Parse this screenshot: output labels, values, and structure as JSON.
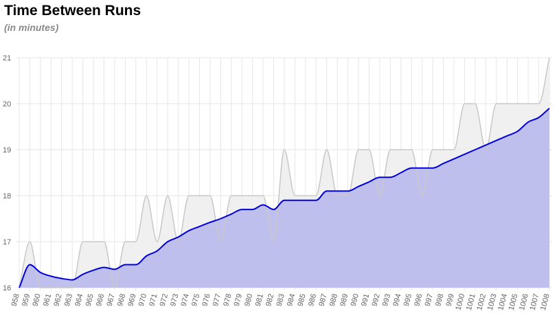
{
  "header": {
    "title": "Time Between Runs",
    "subtitle": "(in minutes)"
  },
  "colors": {
    "average_line": "#0000dd",
    "average_fill": "#b9b9ec",
    "actual_line": "#c8c8c8",
    "actual_fill": "#eeeeee",
    "grid": "#e6e6e6"
  },
  "chart_data": {
    "type": "area",
    "title": "Time Between Runs",
    "subtitle": "(in minutes)",
    "xlabel": "",
    "ylabel": "",
    "ylim": [
      16,
      21
    ],
    "yticks": [
      16,
      17,
      18,
      19,
      20,
      21
    ],
    "grid": true,
    "legend": "none",
    "categories": [
      "958",
      "959",
      "960",
      "961",
      "962",
      "963",
      "964",
      "965",
      "966",
      "967",
      "968",
      "969",
      "970",
      "971",
      "972",
      "973",
      "974",
      "975",
      "976",
      "977",
      "978",
      "979",
      "980",
      "981",
      "982",
      "983",
      "984",
      "985",
      "986",
      "987",
      "988",
      "989",
      "990",
      "991",
      "992",
      "993",
      "994",
      "995",
      "996",
      "997",
      "998",
      "999",
      "1000",
      "1001",
      "1002",
      "1003",
      "1004",
      "1005",
      "1006",
      "1007",
      "1008"
    ],
    "series": [
      {
        "values": [
          16,
          17,
          16,
          16,
          16,
          16,
          17,
          17,
          17,
          16,
          17,
          17,
          18,
          17,
          18,
          17,
          18,
          18,
          18,
          17,
          18,
          18,
          18,
          18,
          17,
          19,
          18,
          18,
          18,
          19,
          18,
          18,
          19,
          19,
          18,
          19,
          19,
          19,
          18,
          19,
          19,
          19,
          20,
          20,
          19,
          20,
          20,
          20,
          20,
          20,
          21
        ]
      },
      {
        "values": [
          16.0,
          16.5,
          16.33,
          16.25,
          16.2,
          16.17,
          16.29,
          16.38,
          16.44,
          16.4,
          16.5,
          16.5,
          16.69,
          16.8,
          17.0,
          17.1,
          17.24,
          17.33,
          17.42,
          17.5,
          17.6,
          17.7,
          17.7,
          17.8,
          17.7,
          17.9,
          17.9,
          17.9,
          17.9,
          18.1,
          18.1,
          18.1,
          18.2,
          18.3,
          18.4,
          18.4,
          18.5,
          18.6,
          18.6,
          18.6,
          18.7,
          18.8,
          18.9,
          19.0,
          19.1,
          19.2,
          19.3,
          19.4,
          19.6,
          19.7,
          19.9
        ]
      }
    ],
    "xticks_show_every": 1
  }
}
